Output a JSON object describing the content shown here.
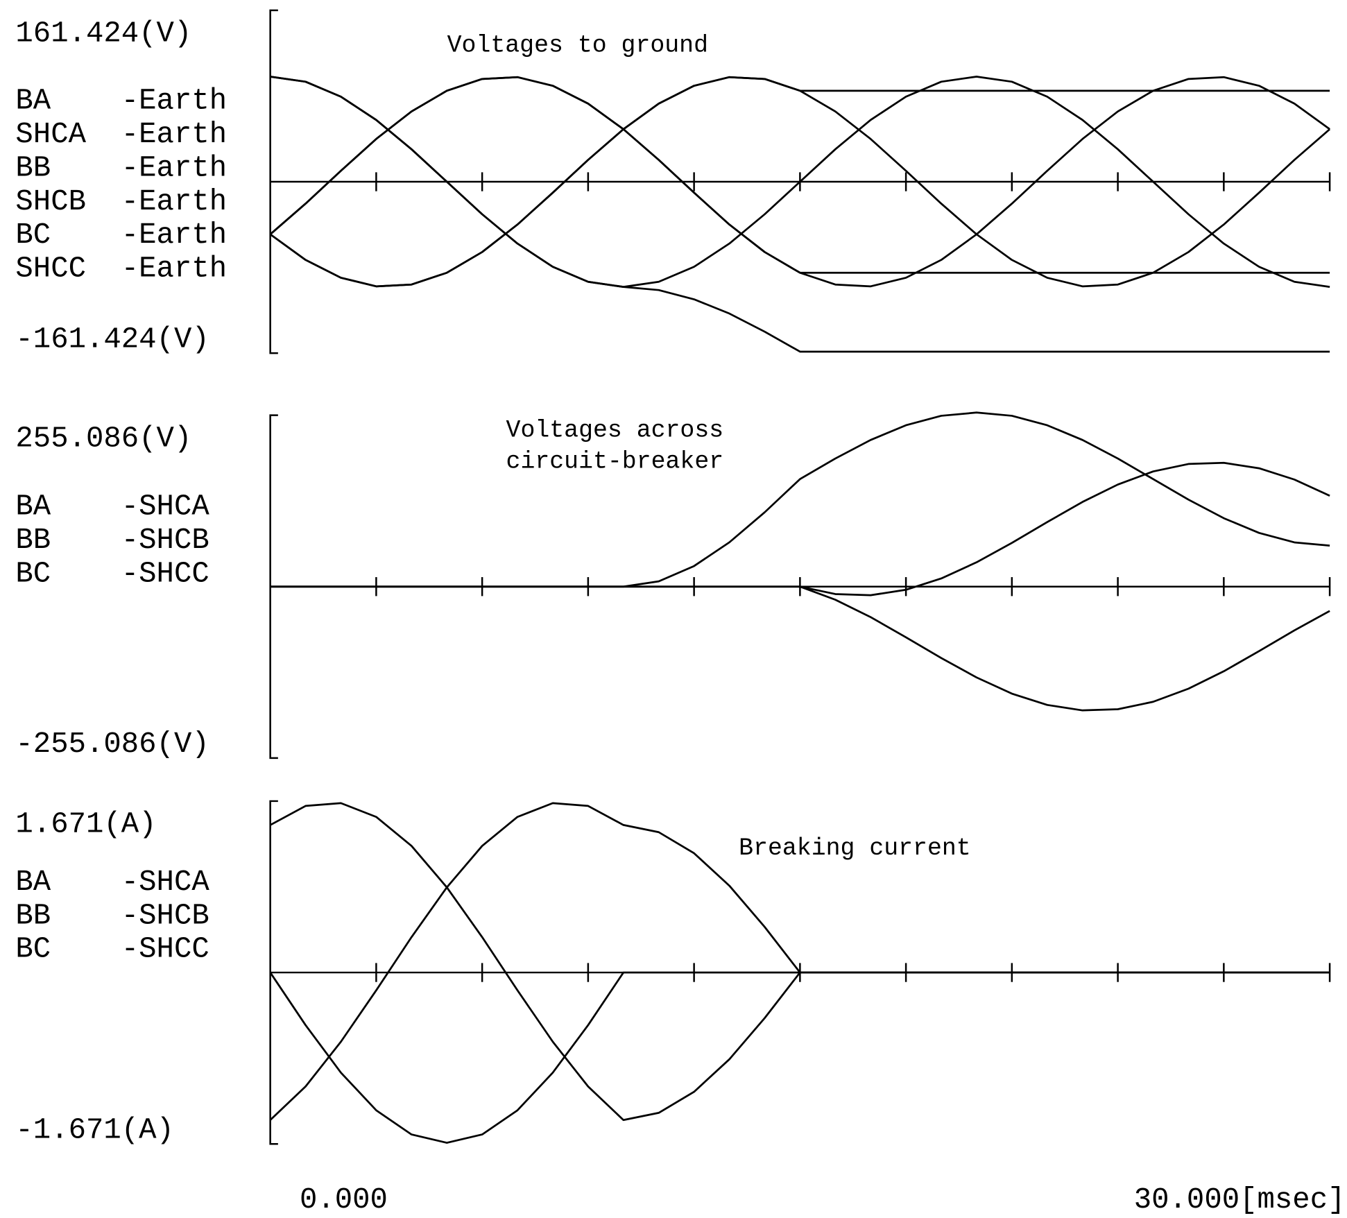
{
  "chart_data": [
    {
      "type": "line",
      "title": "Voltages to ground",
      "color": "#000000",
      "x": [
        0,
        1,
        2,
        3,
        4,
        5,
        6,
        7,
        8,
        9,
        10,
        11,
        12,
        13,
        14,
        15,
        16,
        17,
        18,
        19,
        20,
        21,
        22,
        23,
        24,
        25,
        26,
        27,
        28,
        29,
        30
      ],
      "xlim": [
        0,
        30
      ],
      "xminorticks": [
        3,
        6,
        9,
        12,
        15,
        18,
        21,
        24,
        27,
        30
      ],
      "ylim": [
        -161.424,
        161.424
      ],
      "yticks": [
        {
          "value": 161.424,
          "label": "161.424(V)"
        },
        {
          "value": -161.424,
          "label": "-161.424(V)"
        }
      ],
      "series": [
        {
          "name": "BA    -Earth",
          "values": [
            99,
            94.2,
            80.1,
            58.2,
            30.6,
            0,
            -30.6,
            -58.2,
            -80.1,
            -94.2,
            -99,
            -94.2,
            -80.1,
            -58.2,
            -30.6,
            0,
            30.6,
            58.2,
            80.1,
            94.2,
            99,
            94.2,
            80.1,
            58.2,
            30.6,
            0,
            -30.6,
            -58.2,
            -80.1,
            -94.2,
            -99
          ]
        },
        {
          "name": "SHCA  -Earth",
          "values": [
            99,
            94.2,
            80.1,
            58.2,
            30.6,
            0,
            -30.6,
            -58.2,
            -80.1,
            -94.2,
            -99,
            -102,
            -110.7,
            -124.1,
            -141.2,
            -160,
            -160,
            -160,
            -160,
            -160,
            -160,
            -160,
            -160,
            -160,
            -160,
            -160,
            -160,
            -160,
            -160,
            -160,
            -160
          ]
        },
        {
          "name": "BB    -Earth",
          "values": [
            -49.5,
            -20.6,
            10.3,
            40.3,
            66.2,
            85.7,
            96.8,
            98.5,
            90.4,
            73.6,
            49.5,
            20.6,
            -10.3,
            -40.3,
            -66.2,
            -85.7,
            -96.8,
            -98.5,
            -90.4,
            -73.6,
            -49.5,
            -20.6,
            10.3,
            40.3,
            66.2,
            85.7,
            96.8,
            98.5,
            90.4,
            73.6,
            49.5
          ]
        },
        {
          "name": "SHCB  -Earth",
          "values": [
            -49.5,
            -20.6,
            10.3,
            40.3,
            66.2,
            85.7,
            96.8,
            98.5,
            90.4,
            73.6,
            49.5,
            20.6,
            -10.3,
            -40.3,
            -66.2,
            -85.7,
            -85.7,
            -85.7,
            -85.7,
            -85.7,
            -85.7,
            -85.7,
            -85.7,
            -85.7,
            -85.7,
            -85.7,
            -85.7,
            -85.7,
            -85.7,
            -85.7,
            -85.7
          ]
        },
        {
          "name": "BC    -Earth",
          "values": [
            -49.5,
            -73.6,
            -90.4,
            -98.5,
            -96.8,
            -85.7,
            -66.2,
            -40.3,
            -10.3,
            20.6,
            49.5,
            73.6,
            90.4,
            98.5,
            96.8,
            85.7,
            66.2,
            40.3,
            10.3,
            -20.6,
            -49.5,
            -73.6,
            -90.4,
            -98.5,
            -96.8,
            -85.7,
            -66.2,
            -40.3,
            -10.3,
            20.6,
            49.5
          ]
        },
        {
          "name": "SHCC  -Earth",
          "values": [
            -49.5,
            -73.6,
            -90.4,
            -98.5,
            -96.8,
            -85.7,
            -66.2,
            -40.3,
            -10.3,
            20.6,
            49.5,
            73.6,
            90.4,
            98.5,
            96.8,
            85.7,
            85.7,
            85.7,
            85.7,
            85.7,
            85.7,
            85.7,
            85.7,
            85.7,
            85.7,
            85.7,
            85.7,
            85.7,
            85.7,
            85.7,
            85.7
          ]
        }
      ]
    },
    {
      "type": "line",
      "title": [
        "Voltages across",
        "circuit-breaker"
      ],
      "color": "#000000",
      "x": [
        0,
        1,
        2,
        3,
        4,
        5,
        6,
        7,
        8,
        9,
        10,
        11,
        12,
        13,
        14,
        15,
        16,
        17,
        18,
        19,
        20,
        21,
        22,
        23,
        24,
        25,
        26,
        27,
        28,
        29,
        30
      ],
      "xlim": [
        0,
        30
      ],
      "xminorticks": [
        3,
        6,
        9,
        12,
        15,
        18,
        21,
        24,
        27,
        30
      ],
      "ylim": [
        -255.086,
        255.086
      ],
      "yticks": [
        {
          "value": 255.086,
          "label": "255.086(V)"
        },
        {
          "value": -255.086,
          "label": "-255.086(V)"
        }
      ],
      "series": [
        {
          "name": "BA    -SHCA",
          "values": [
            0,
            0,
            0,
            0,
            0,
            0,
            0,
            0,
            0,
            0,
            0,
            7.8,
            30.6,
            65.9,
            110.6,
            160,
            190.6,
            218.2,
            240.1,
            254.2,
            259,
            254.2,
            240.1,
            218.2,
            190.6,
            160,
            129.4,
            101.8,
            79.9,
            65.8,
            61
          ]
        },
        {
          "name": "BB    -SHCB",
          "values": [
            0,
            0,
            0,
            0,
            0,
            0,
            0,
            0,
            0,
            0,
            0,
            0,
            0,
            0,
            0,
            0,
            -11.1,
            -12.8,
            -4.7,
            12.1,
            36.2,
            65.1,
            96,
            126,
            151.9,
            171.4,
            182.5,
            184.2,
            176.1,
            159.3,
            135.2
          ]
        },
        {
          "name": "BC    -SHCC",
          "values": [
            0,
            0,
            0,
            0,
            0,
            0,
            0,
            0,
            0,
            0,
            0,
            0,
            0,
            0,
            0,
            0,
            -19.5,
            -45.4,
            -75.4,
            -106.3,
            -135.2,
            -159.3,
            -176.1,
            -184.2,
            -182.5,
            -171.4,
            -151.9,
            -126,
            -96,
            -65.1,
            -36.2
          ]
        }
      ]
    },
    {
      "type": "line",
      "title": "Breaking current",
      "color": "#000000",
      "x": [
        0,
        1,
        2,
        3,
        4,
        5,
        6,
        7,
        8,
        9,
        10,
        11,
        12,
        13,
        14,
        15,
        16,
        17,
        18,
        19,
        20,
        21,
        22,
        23,
        24,
        25,
        26,
        27,
        28,
        29,
        30
      ],
      "xlim": [
        0,
        30
      ],
      "xminorticks": [
        3,
        6,
        9,
        12,
        15,
        18,
        21,
        24,
        27,
        30
      ],
      "xticks": [
        {
          "value": 0,
          "label": "0.000"
        },
        {
          "value": 30,
          "label": "30.000[msec]"
        }
      ],
      "ylim": [
        -1.671,
        1.671
      ],
      "yticks": [
        {
          "value": 1.671,
          "label": "1.671(A)"
        },
        {
          "value": -1.671,
          "label": "-1.671(A)"
        }
      ],
      "series": [
        {
          "name": "BA    -SHCA",
          "values": [
            0,
            -0.513,
            -0.976,
            -1.343,
            -1.579,
            -1.66,
            -1.579,
            -1.343,
            -0.976,
            -0.513,
            0,
            0,
            0,
            0,
            0,
            0,
            0,
            0,
            0,
            0,
            0,
            0,
            0,
            0,
            0,
            0,
            0,
            0,
            0,
            0,
            0
          ]
        },
        {
          "name": "BB    -SHCB",
          "values": [
            1.438,
            1.624,
            1.651,
            1.517,
            1.234,
            0.83,
            0.345,
            -0.174,
            -0.675,
            -1.111,
            -1.438,
            -1.368,
            -1.163,
            -0.846,
            -0.444,
            0,
            0,
            0,
            0,
            0,
            0,
            0,
            0,
            0,
            0,
            0,
            0,
            0,
            0,
            0,
            0
          ]
        },
        {
          "name": "BC    -SHCC",
          "values": [
            -1.438,
            -1.111,
            -0.675,
            -0.174,
            0.345,
            0.83,
            1.234,
            1.517,
            1.651,
            1.624,
            1.438,
            1.368,
            1.163,
            0.846,
            0.444,
            0,
            0,
            0,
            0,
            0,
            0,
            0,
            0,
            0,
            0,
            0,
            0,
            0,
            0,
            0,
            0
          ]
        }
      ]
    }
  ]
}
